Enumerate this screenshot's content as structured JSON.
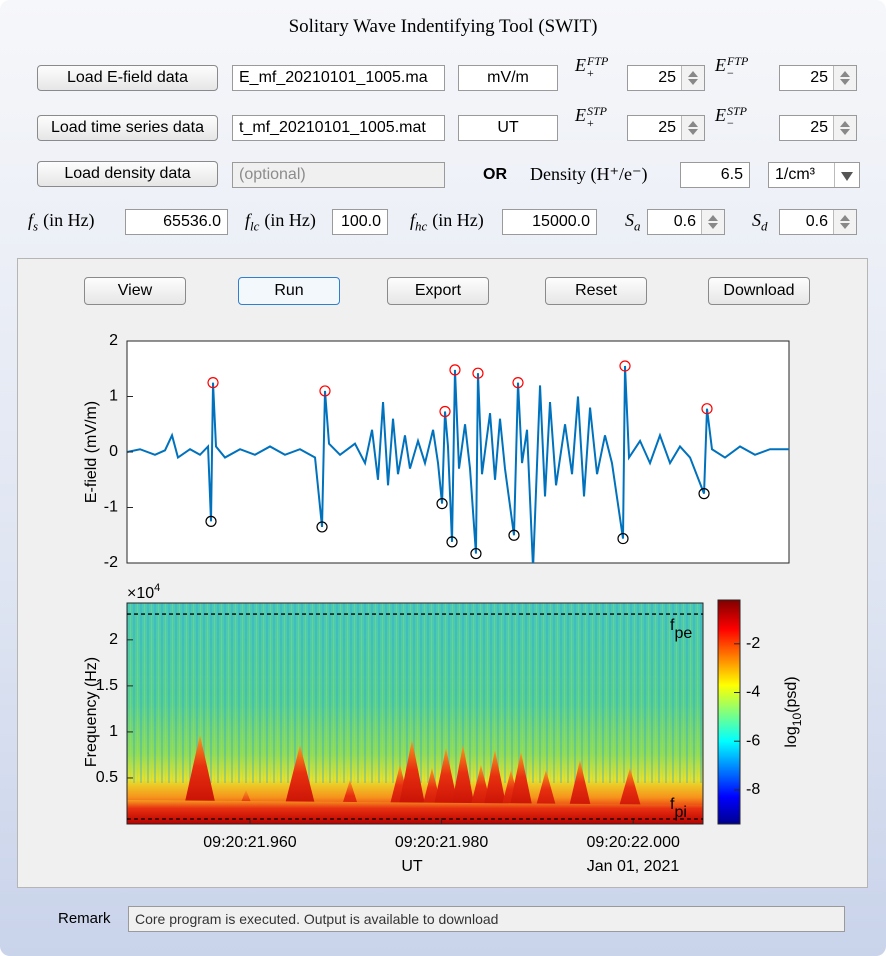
{
  "window": {
    "title": "Solitary Wave Indentifying Tool (SWIT)"
  },
  "controls": {
    "efield": {
      "button": "Load E-field data",
      "file": "E_mf_20210101_1005.ma",
      "unit": "mV/m"
    },
    "time": {
      "button": "Load time series data",
      "file": "t_mf_20210101_1005.mat",
      "unit": "UT"
    },
    "density": {
      "button": "Load density data",
      "placeholder": "(optional)",
      "or": "OR",
      "label": "Density (H⁺/e⁻)",
      "value": "6.5",
      "unit": "1/cm³"
    },
    "thresholds": [
      {
        "symbol": "E",
        "sub": "+",
        "sup": "FTP",
        "value": "25"
      },
      {
        "symbol": "E",
        "sub": "−",
        "sup": "FTP",
        "value": "25"
      },
      {
        "symbol": "E",
        "sub": "+",
        "sup": "STP",
        "value": "25"
      },
      {
        "symbol": "E",
        "sub": "−",
        "sup": "STP",
        "value": "25"
      }
    ],
    "params": [
      {
        "symbol": "f",
        "sub": "s",
        "unit": "(in Hz)",
        "value": "65536.0"
      },
      {
        "symbol": "f",
        "sub": "lc",
        "unit": "(in Hz)",
        "value": "100.0"
      },
      {
        "symbol": "f",
        "sub": "hc",
        "unit": "(in Hz)",
        "value": "15000.0"
      },
      {
        "symbol": "S",
        "sub": "a",
        "value": "0.6"
      },
      {
        "symbol": "S",
        "sub": "d",
        "value": "0.6"
      }
    ]
  },
  "actions": [
    "View",
    "Run",
    "Export",
    "Reset",
    "Download"
  ],
  "remark": {
    "label": "Remark",
    "text": "Core program is executed. Output is available to download"
  },
  "chart_data": [
    {
      "type": "line",
      "ylabel": "E-field (mV/m)",
      "xlim": [
        21.94716,
        22.01627
      ],
      "ylim": [
        -2,
        2
      ],
      "yticks": [
        -2,
        -1,
        0,
        1,
        2
      ],
      "series": [
        {
          "mode": "line",
          "color": "#0072bd",
          "x": [
            21.94716,
            21.94852,
            21.95008,
            21.95113,
            21.95186,
            21.95248,
            21.95374,
            21.95478,
            21.95562,
            21.95593,
            21.95614,
            21.95645,
            21.95739,
            21.95896,
            21.96052,
            21.96209,
            21.96365,
            21.96522,
            21.96679,
            21.96752,
            21.96783,
            21.96825,
            21.9694,
            21.97096,
            21.97201,
            21.97274,
            21.97336,
            21.97389,
            21.97441,
            21.97493,
            21.97545,
            21.97618,
            21.9767,
            21.97754,
            21.97827,
            21.97911,
            21.97963,
            21.98005,
            21.98036,
            21.98067,
            21.98109,
            21.9814,
            21.98182,
            21.98245,
            21.98297,
            21.98359,
            21.9838,
            21.98422,
            21.98506,
            21.98558,
            21.9861,
            21.98662,
            21.98756,
            21.98798,
            21.9884,
            21.98892,
            21.98955,
            21.99028,
            21.9908,
            21.99132,
            21.99195,
            21.99289,
            21.99362,
            21.99424,
            21.99487,
            21.9955,
            21.99623,
            21.99706,
            21.99779,
            21.99894,
            21.99915,
            21.99957,
            22.00072,
            22.00176,
            22.0028,
            22.00385,
            22.00489,
            22.00594,
            22.0074,
            22.00771,
            22.00823,
            22.00959,
            22.01116,
            22.01272,
            22.01429,
            22.01627
          ],
          "values": [
            0,
            0.05,
            -0.05,
            0.03,
            0.3,
            -0.1,
            0.05,
            -0.05,
            0.1,
            -1.25,
            1.25,
            0.1,
            -0.1,
            0.05,
            -0.05,
            0.1,
            -0.05,
            0.05,
            -0.1,
            -1.35,
            1.1,
            0.15,
            -0.05,
            0.15,
            -0.2,
            0.4,
            -0.5,
            0.9,
            -0.6,
            0.6,
            -0.4,
            0.3,
            -0.3,
            0.2,
            -0.2,
            0.4,
            -0.2,
            -0.93,
            0.73,
            0.1,
            -1.62,
            1.48,
            -0.3,
            0.5,
            -0.3,
            -1.83,
            1.42,
            -0.4,
            0.7,
            -0.5,
            0.6,
            -0.3,
            -1.5,
            1.25,
            -0.2,
            0.4,
            -2.1,
            1.2,
            -0.8,
            0.9,
            -0.6,
            0.5,
            -0.4,
            1.0,
            -0.8,
            0.8,
            -0.4,
            0.3,
            -0.2,
            -1.56,
            1.55,
            -0.1,
            0.2,
            -0.2,
            0.3,
            -0.2,
            0.1,
            -0.1,
            -0.75,
            0.78,
            0.05,
            -0.1,
            0.1,
            -0.05,
            0.05,
            0.05
          ]
        },
        {
          "mode": "markers",
          "color": "#ff0000",
          "x": [
            21.95614,
            21.96783,
            21.98036,
            21.9814,
            21.9838,
            21.98798,
            21.99915,
            22.00771
          ],
          "values": [
            1.25,
            1.1,
            0.73,
            1.48,
            1.42,
            1.25,
            1.55,
            0.78
          ]
        },
        {
          "mode": "markers",
          "color": "#000000",
          "x": [
            21.95593,
            21.96752,
            21.98005,
            21.98109,
            21.98359,
            21.98756,
            21.99894,
            22.0074
          ],
          "values": [
            -1.25,
            -1.35,
            -0.93,
            -1.62,
            -1.83,
            -1.5,
            -1.56,
            -0.75
          ]
        }
      ]
    },
    {
      "type": "spectrogram",
      "ylabel": "Frequency (Hz)",
      "xlabel": "UT",
      "date_label": "Jan 01, 2021",
      "xlim": [
        21.94716,
        22.00729
      ],
      "xticks": [
        {
          "value": 21.96,
          "label": "09:20:21.960"
        },
        {
          "value": 21.98,
          "label": "09:20:21.980"
        },
        {
          "value": 22.0,
          "label": "09:20:22.000"
        }
      ],
      "ylim": [
        0,
        24000
      ],
      "yticks": [
        {
          "value": 5000,
          "label": "0.5"
        },
        {
          "value": 10000,
          "label": "1"
        },
        {
          "value": 15000,
          "label": "1.5"
        },
        {
          "value": 20000,
          "label": "2"
        }
      ],
      "y_exponent": {
        "base": "×10",
        "sup": "4"
      },
      "annotations": [
        {
          "text": "f",
          "sub": "pe",
          "y": 22800
        },
        {
          "text": "f",
          "sub": "pi",
          "y": 540
        }
      ],
      "colorbar": {
        "label": {
          "base": "log",
          "sub": "10",
          "rest": "(psd)"
        },
        "lim": [
          -9.4,
          -0.2
        ],
        "ticks": [
          -8,
          -6,
          -4,
          -2
        ],
        "colormap": "jet"
      }
    }
  ]
}
